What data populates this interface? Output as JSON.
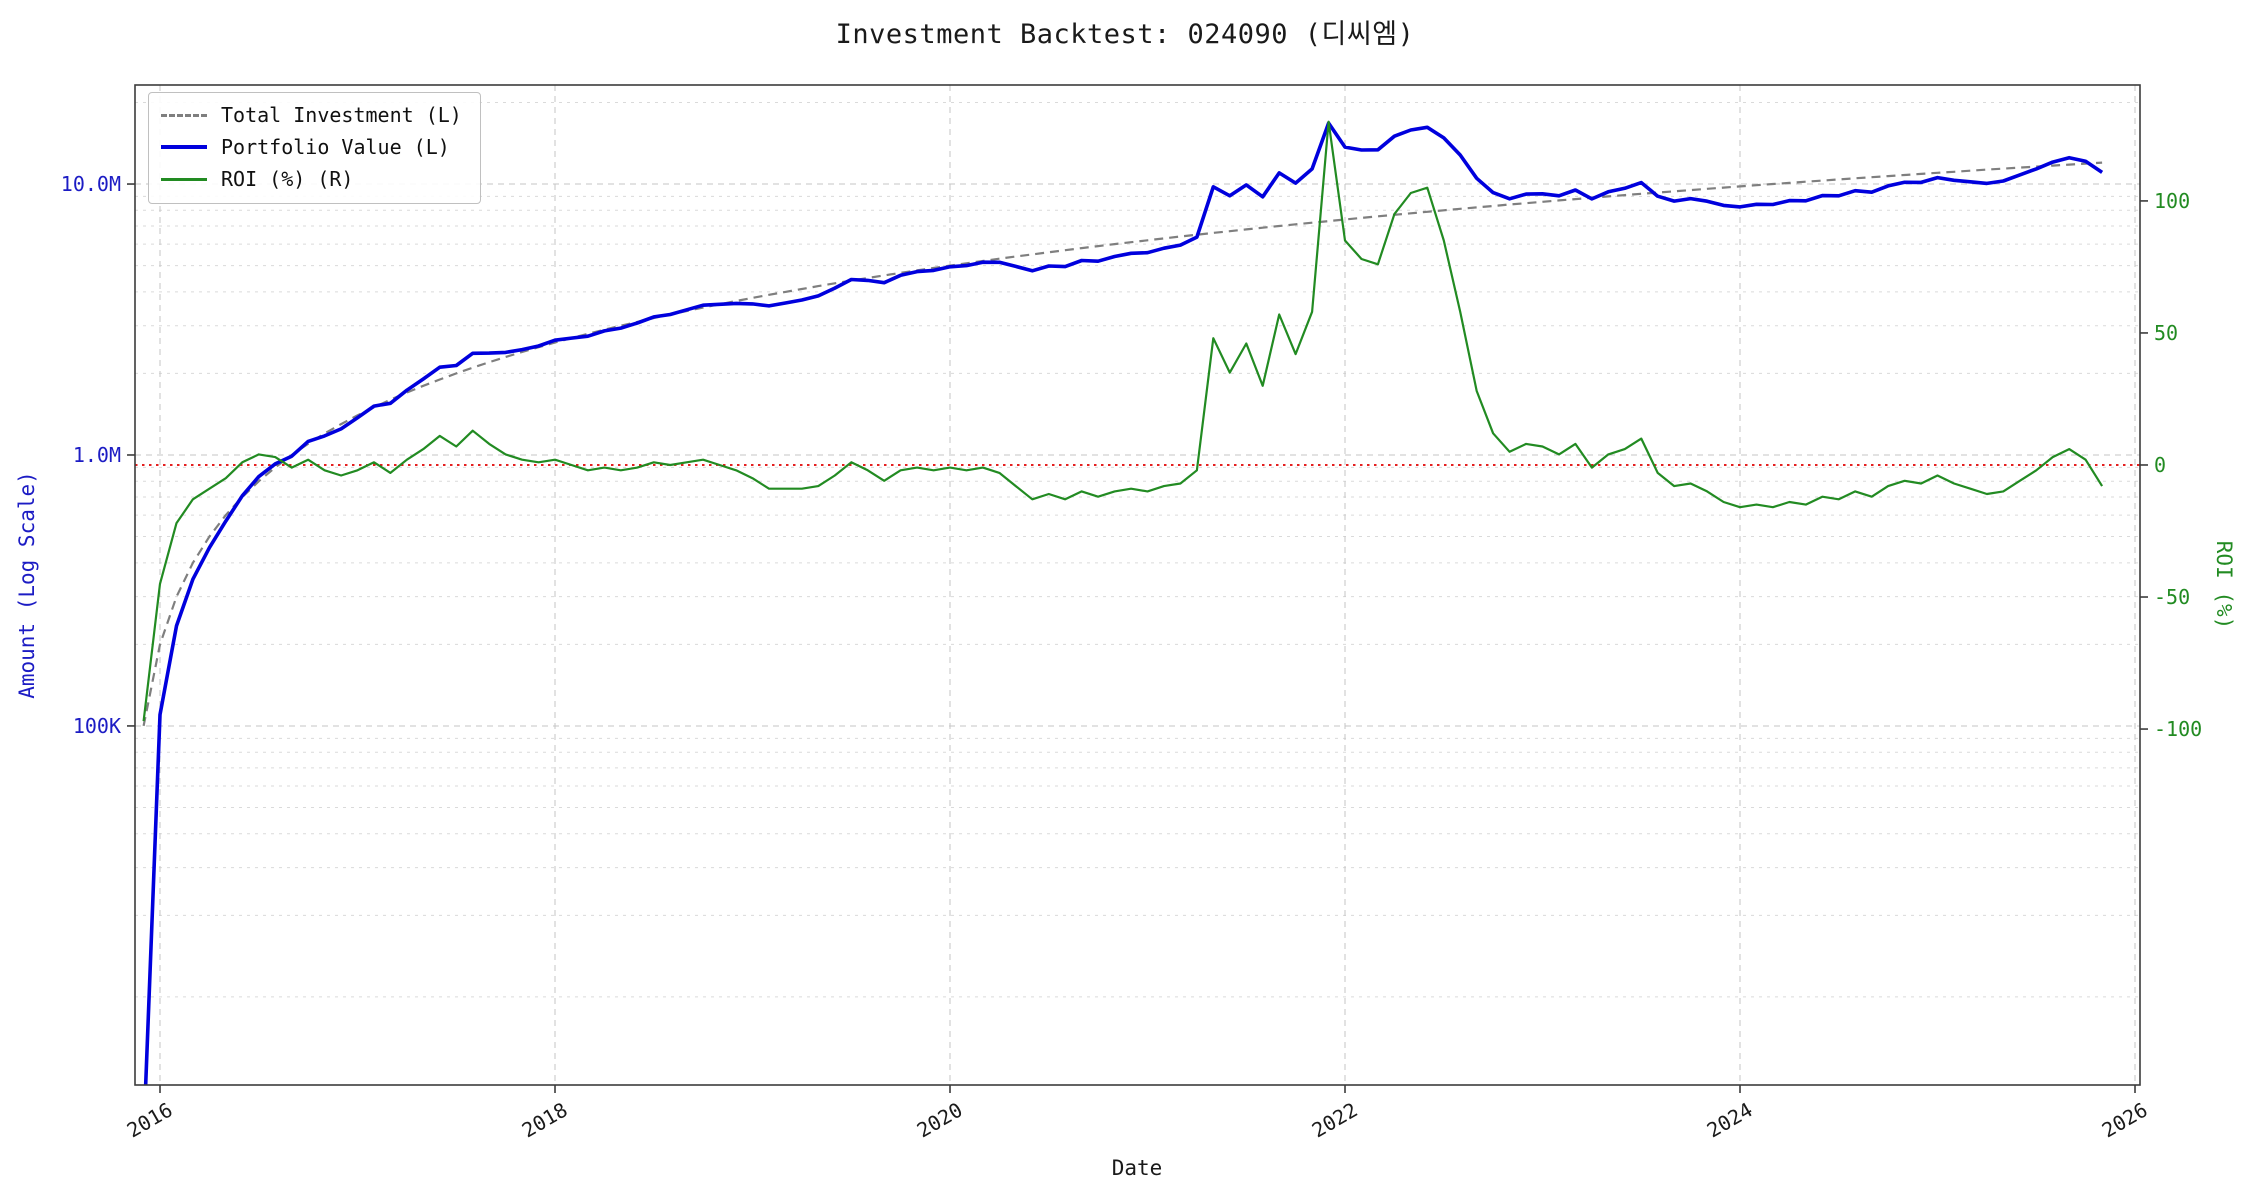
{
  "chart_data": {
    "type": "line",
    "title": "Investment Backtest: 024090 (디씨엠)",
    "x_axis": {
      "label": "Date",
      "ticks": [
        "2016",
        "2018",
        "2020",
        "2022",
        "2024",
        "2026"
      ],
      "tick_years": [
        2016,
        2018,
        2020,
        2022,
        2024,
        2026
      ],
      "range_years": [
        2015.8734,
        2026.0253
      ]
    },
    "left_axis": {
      "label": "Amount (Log Scale)",
      "scale": "log",
      "color": "#1c1cc4",
      "ticks": [
        {
          "value": 100000,
          "label": "100K"
        },
        {
          "value": 1000000,
          "label": "1.0M"
        },
        {
          "value": 10000000,
          "label": "10.0M"
        }
      ],
      "range": [
        4730,
        23200000
      ]
    },
    "right_axis": {
      "label": "ROI (%)",
      "color": "#228b22",
      "ticks": [
        {
          "value": -100,
          "label": "-100"
        },
        {
          "value": -50,
          "label": "-50"
        },
        {
          "value": 0,
          "label": "0"
        },
        {
          "value": 50,
          "label": "50"
        },
        {
          "value": 100,
          "label": "100"
        }
      ],
      "range": [
        -234.8,
        143.9
      ]
    },
    "zero_line": {
      "axis": "right",
      "value": 0,
      "color": "#e00000"
    },
    "x_start_year": 2015.9167,
    "x_step_years": 0.0833333,
    "series": [
      {
        "name": "Total Investment (L)",
        "axis": "left",
        "values_unit": "M",
        "color": "#7f7f7f",
        "width": 2.2,
        "dash": "9 6",
        "values": [
          0.1,
          0.2,
          0.3,
          0.4,
          0.5,
          0.6,
          0.7,
          0.8,
          0.9,
          1.0,
          1.1,
          1.2,
          1.3,
          1.4,
          1.5,
          1.6,
          1.7,
          1.8,
          1.9,
          2.0,
          2.1,
          2.2,
          2.3,
          2.4,
          2.5,
          2.6,
          2.7,
          2.8,
          2.9,
          3.0,
          3.1,
          3.2,
          3.3,
          3.4,
          3.5,
          3.6,
          3.7,
          3.8,
          3.9,
          4.0,
          4.1,
          4.2,
          4.3,
          4.4,
          4.5,
          4.6,
          4.7,
          4.8,
          4.9,
          5.0,
          5.1,
          5.2,
          5.3,
          5.4,
          5.5,
          5.6,
          5.7,
          5.8,
          5.9,
          6.0,
          6.1,
          6.2,
          6.3,
          6.4,
          6.5,
          6.6,
          6.7,
          6.8,
          6.9,
          7.0,
          7.1,
          7.2,
          7.3,
          7.4,
          7.5,
          7.6,
          7.7,
          7.8,
          7.9,
          8.0,
          8.1,
          8.2,
          8.3,
          8.4,
          8.5,
          8.6,
          8.7,
          8.8,
          8.9,
          9.0,
          9.1,
          9.2,
          9.3,
          9.4,
          9.5,
          9.6,
          9.7,
          9.8,
          9.9,
          10.0,
          10.1,
          10.2,
          10.3,
          10.4,
          10.5,
          10.6,
          10.7,
          10.8,
          10.9,
          11.0,
          11.1,
          11.2,
          11.3,
          11.4,
          11.5,
          11.6,
          11.7,
          11.8,
          11.9,
          12.0
        ]
      },
      {
        "name": "Portfolio Value (L)",
        "axis": "left",
        "values_unit": "M",
        "color": "#0000dd",
        "width": 3.6,
        "dash": "",
        "values": [
          0.003,
          0.11,
          0.234,
          0.348,
          0.455,
          0.57,
          0.707,
          0.832,
          0.927,
          0.99,
          1.122,
          1.176,
          1.248,
          1.372,
          1.515,
          1.552,
          1.734,
          1.908,
          2.109,
          2.14,
          2.373,
          2.376,
          2.392,
          2.448,
          2.525,
          2.652,
          2.7,
          2.744,
          2.871,
          2.94,
          3.069,
          3.232,
          3.3,
          3.434,
          3.57,
          3.6,
          3.626,
          3.61,
          3.549,
          3.64,
          3.731,
          3.864,
          4.128,
          4.444,
          4.41,
          4.324,
          4.606,
          4.752,
          4.802,
          4.95,
          4.998,
          5.148,
          5.141,
          4.968,
          4.785,
          4.984,
          4.959,
          5.22,
          5.192,
          5.4,
          5.551,
          5.58,
          5.796,
          5.952,
          6.37,
          9.768,
          9.045,
          9.928,
          8.97,
          10.99,
          10.082,
          11.376,
          16.79,
          13.69,
          13.35,
          13.376,
          15.015,
          15.834,
          16.195,
          14.8,
          12.798,
          10.496,
          9.296,
          8.82,
          9.18,
          9.202,
          9.048,
          9.504,
          8.811,
          9.36,
          9.646,
          10.12,
          9.021,
          8.648,
          8.835,
          8.64,
          8.342,
          8.232,
          8.415,
          8.4,
          8.686,
          8.67,
          9.064,
          9.048,
          9.45,
          9.328,
          9.844,
          10.152,
          10.137,
          10.56,
          10.323,
          10.192,
          10.057,
          10.26,
          10.81,
          11.368,
          12.051,
          12.508,
          12.138,
          11.04
        ]
      },
      {
        "name": "ROI (%) (R)",
        "axis": "right",
        "color": "#228b22",
        "width": 2.2,
        "dash": "",
        "values": [
          -97,
          -45,
          -22,
          -13,
          -9,
          -5,
          1,
          4,
          3,
          -1,
          2,
          -2,
          -4,
          -2,
          1,
          -3,
          2,
          6,
          11,
          7,
          13,
          8,
          4,
          2,
          1,
          2,
          0,
          -2,
          -1,
          -2,
          -1,
          1,
          0,
          1,
          2,
          0,
          -2,
          -5,
          -9,
          -9,
          -9,
          -8,
          -4,
          1,
          -2,
          -6,
          -2,
          -1,
          -2,
          -1,
          -2,
          -1,
          -3,
          -8,
          -13,
          -11,
          -13,
          -10,
          -12,
          -10,
          -9,
          -10,
          -8,
          -7,
          -2,
          48,
          35,
          46,
          30,
          57,
          42,
          58,
          130,
          85,
          78,
          76,
          95,
          103,
          105,
          85,
          58,
          28,
          12,
          5,
          8,
          7,
          4,
          8,
          -1,
          4,
          6,
          10,
          -3,
          -8,
          -7,
          -10,
          -14,
          -16,
          -15,
          -16,
          -14,
          -15,
          -12,
          -13,
          -10,
          -12,
          -8,
          -6,
          -7,
          -4,
          -7,
          -9,
          -11,
          -10,
          -6,
          -2,
          3,
          6,
          2,
          -8
        ]
      }
    ]
  }
}
